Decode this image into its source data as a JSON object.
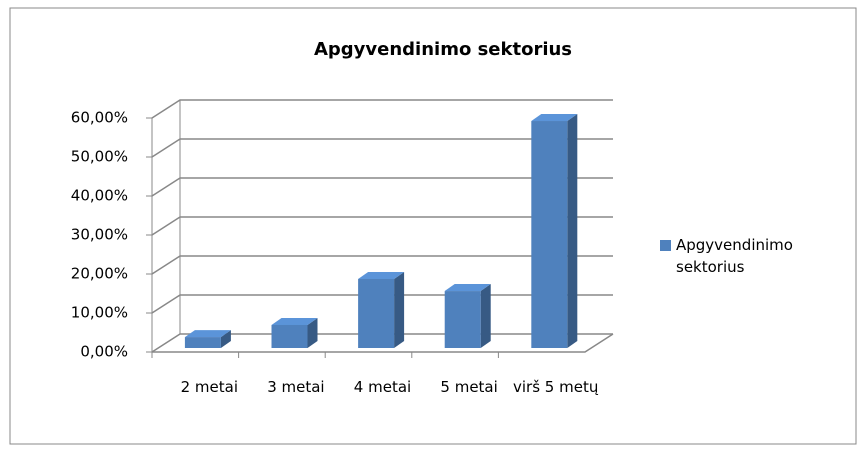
{
  "chart_data": {
    "type": "bar3d",
    "title": "Apgyvendinimo sektorius",
    "categories": [
      "2 metai",
      "3 metai",
      "4 metai",
      "5 metai",
      "virš 5 metų"
    ],
    "series": [
      {
        "name": "Apgyvendinimo sektorius",
        "color": "#4f81bd",
        "values": [
          2.8,
          5.9,
          17.7,
          14.6,
          58.2
        ]
      }
    ],
    "ylim": [
      0,
      60
    ],
    "yticks": [
      {
        "value": 0,
        "label": "0,00%"
      },
      {
        "value": 10,
        "label": "10,00%"
      },
      {
        "value": 20,
        "label": "20,00%"
      },
      {
        "value": 30,
        "label": "30,00%"
      },
      {
        "value": 40,
        "label": "40,00%"
      },
      {
        "value": 50,
        "label": "50,00%"
      },
      {
        "value": 60,
        "label": "60,00%"
      }
    ],
    "grid": true,
    "legend": "right"
  }
}
